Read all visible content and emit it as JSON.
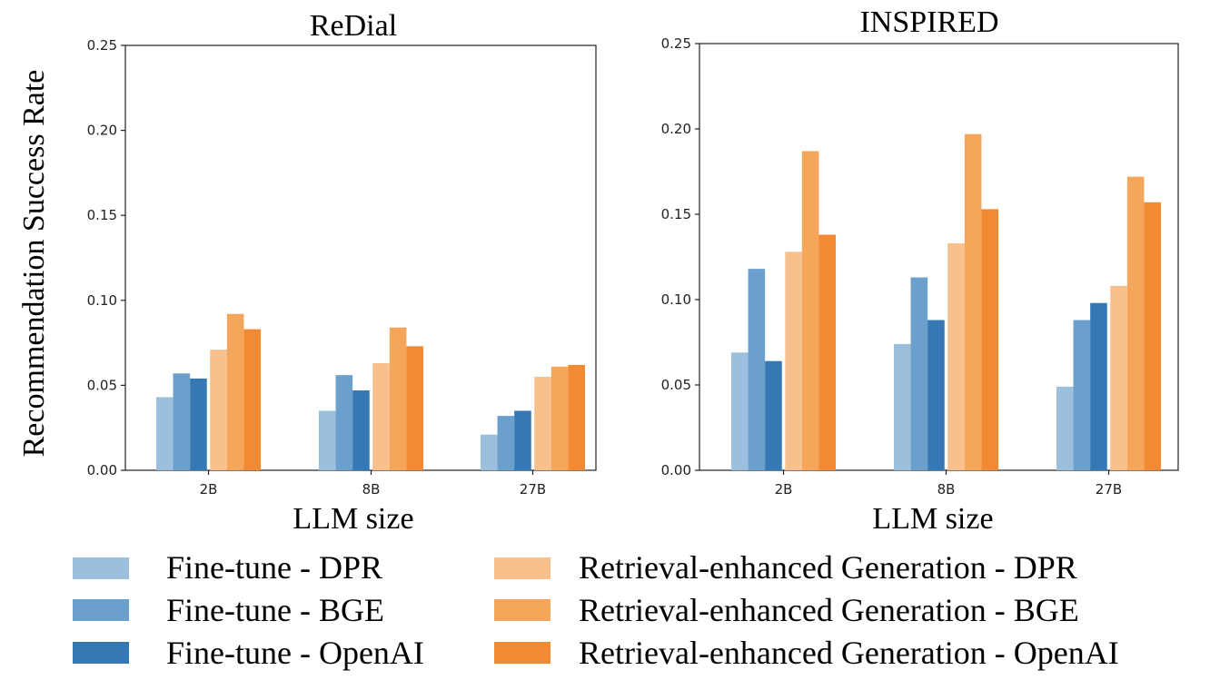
{
  "chart_data": [
    {
      "type": "bar",
      "title": "ReDial",
      "xlabel": "LLM size",
      "ylabel": "Recommendation Success Rate",
      "categories": [
        "2B",
        "8B",
        "27B"
      ],
      "ylim": [
        0,
        0.25
      ],
      "yticks": [
        "0.00",
        "0.05",
        "0.10",
        "0.15",
        "0.20",
        "0.25"
      ],
      "series": [
        {
          "name": "Fine-tune - DPR",
          "values": [
            0.043,
            0.035,
            0.021
          ]
        },
        {
          "name": "Fine-tune - BGE",
          "values": [
            0.057,
            0.056,
            0.032
          ]
        },
        {
          "name": "Fine-tune - OpenAI",
          "values": [
            0.054,
            0.047,
            0.035
          ]
        },
        {
          "name": "Retrieval-enhanced Generation - DPR",
          "values": [
            0.071,
            0.063,
            0.055
          ]
        },
        {
          "name": "Retrieval-enhanced Generation - BGE",
          "values": [
            0.092,
            0.084,
            0.061
          ]
        },
        {
          "name": "Retrieval-enhanced Generation - OpenAI",
          "values": [
            0.083,
            0.073,
            0.062
          ]
        }
      ]
    },
    {
      "type": "bar",
      "title": "INSPIRED",
      "xlabel": "LLM size",
      "ylabel": "",
      "categories": [
        "2B",
        "8B",
        "27B"
      ],
      "ylim": [
        0,
        0.25
      ],
      "yticks": [
        "0.00",
        "0.05",
        "0.10",
        "0.15",
        "0.20",
        "0.25"
      ],
      "series": [
        {
          "name": "Fine-tune - DPR",
          "values": [
            0.069,
            0.074,
            0.049
          ]
        },
        {
          "name": "Fine-tune - BGE",
          "values": [
            0.118,
            0.113,
            0.088
          ]
        },
        {
          "name": "Fine-tune - OpenAI",
          "values": [
            0.064,
            0.088,
            0.098
          ]
        },
        {
          "name": "Retrieval-enhanced Generation - DPR",
          "values": [
            0.128,
            0.133,
            0.108
          ]
        },
        {
          "name": "Retrieval-enhanced Generation - BGE",
          "values": [
            0.187,
            0.197,
            0.172
          ]
        },
        {
          "name": "Retrieval-enhanced Generation - OpenAI",
          "values": [
            0.138,
            0.153,
            0.157
          ]
        }
      ]
    }
  ],
  "colors": [
    "#9bbfdd",
    "#6ba0cc",
    "#3678b4",
    "#f8c08c",
    "#f5a65b",
    "#f28a33"
  ],
  "legend": {
    "placement": "bottom",
    "entries": [
      "Fine-tune - DPR",
      "Fine-tune - BGE",
      "Fine-tune - OpenAI",
      "Retrieval-enhanced Generation - DPR",
      "Retrieval-enhanced Generation - BGE",
      "Retrieval-enhanced Generation - OpenAI"
    ]
  }
}
